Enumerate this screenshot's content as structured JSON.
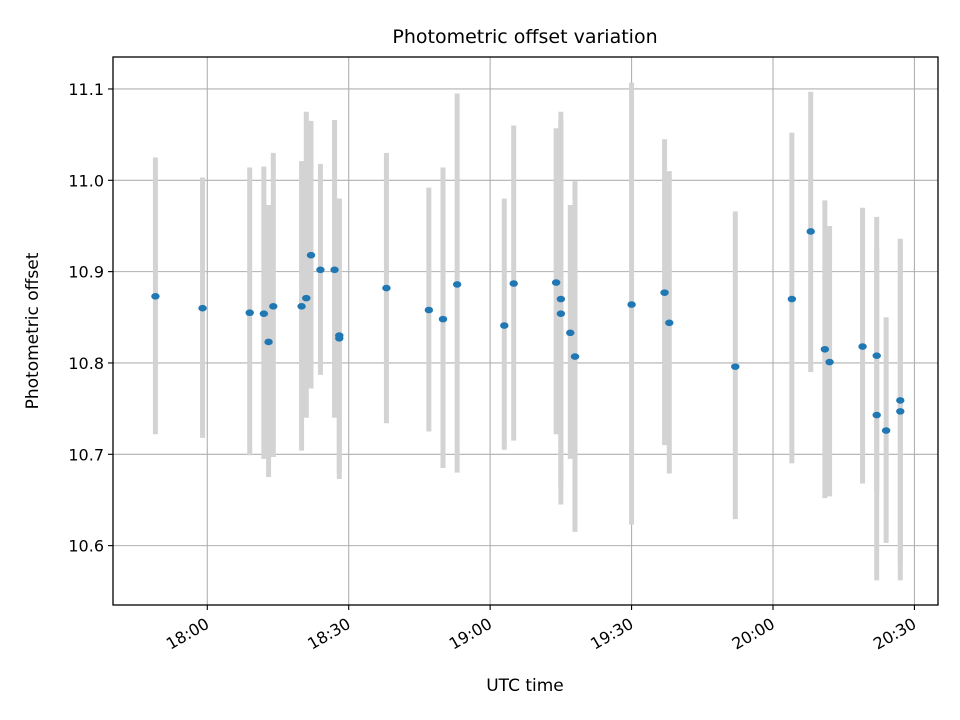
{
  "chart_data": {
    "type": "scatter",
    "title": "Photometric offset variation",
    "xlabel": "UTC time",
    "ylabel": "Photometric offset",
    "x_axis_kind": "time",
    "xlim": [
      "17:40",
      "20:35"
    ],
    "ylim": [
      10.535,
      11.135
    ],
    "xticks": [
      {
        "value": "18:00",
        "label": "18:00"
      },
      {
        "value": "18:30",
        "label": "18:30"
      },
      {
        "value": "19:00",
        "label": "19:00"
      },
      {
        "value": "19:30",
        "label": "19:30"
      },
      {
        "value": "20:00",
        "label": "20:00"
      },
      {
        "value": "20:30",
        "label": "20:30"
      }
    ],
    "yticks": [
      10.6,
      10.7,
      10.8,
      10.9,
      11.0,
      11.1
    ],
    "grid": true,
    "point_color": "#1f77b4",
    "errorbar_color": "#d3d3d3",
    "points": [
      {
        "x": "17:49",
        "y": 10.873,
        "ylow": 10.722,
        "yhigh": 11.025
      },
      {
        "x": "17:59",
        "y": 10.86,
        "ylow": 10.718,
        "yhigh": 11.003
      },
      {
        "x": "18:09",
        "y": 10.855,
        "ylow": 10.699,
        "yhigh": 11.014
      },
      {
        "x": "18:12",
        "y": 10.854,
        "ylow": 10.695,
        "yhigh": 11.015
      },
      {
        "x": "18:13",
        "y": 10.823,
        "ylow": 10.675,
        "yhigh": 10.973
      },
      {
        "x": "18:14",
        "y": 10.862,
        "ylow": 10.697,
        "yhigh": 11.03
      },
      {
        "x": "18:20",
        "y": 10.862,
        "ylow": 10.704,
        "yhigh": 11.021
      },
      {
        "x": "18:21",
        "y": 10.871,
        "ylow": 10.74,
        "yhigh": 11.075
      },
      {
        "x": "18:22",
        "y": 10.918,
        "ylow": 10.772,
        "yhigh": 11.065
      },
      {
        "x": "18:24",
        "y": 10.902,
        "ylow": 10.787,
        "yhigh": 11.018
      },
      {
        "x": "18:27",
        "y": 10.902,
        "ylow": 10.74,
        "yhigh": 11.066
      },
      {
        "x": "18:28",
        "y": 10.827,
        "ylow": 10.673,
        "yhigh": 10.98
      },
      {
        "x": "18:28",
        "y": 10.83,
        "ylow": 10.68,
        "yhigh": 10.98
      },
      {
        "x": "18:38",
        "y": 10.882,
        "ylow": 10.734,
        "yhigh": 11.03
      },
      {
        "x": "18:47",
        "y": 10.858,
        "ylow": 10.725,
        "yhigh": 10.992
      },
      {
        "x": "18:50",
        "y": 10.848,
        "ylow": 10.685,
        "yhigh": 11.014
      },
      {
        "x": "18:53",
        "y": 10.886,
        "ylow": 10.68,
        "yhigh": 11.095
      },
      {
        "x": "19:03",
        "y": 10.841,
        "ylow": 10.705,
        "yhigh": 10.98
      },
      {
        "x": "19:05",
        "y": 10.887,
        "ylow": 10.715,
        "yhigh": 11.06
      },
      {
        "x": "19:14",
        "y": 10.888,
        "ylow": 10.722,
        "yhigh": 11.057
      },
      {
        "x": "19:15",
        "y": 10.87,
        "ylow": 10.665,
        "yhigh": 11.075
      },
      {
        "x": "19:15",
        "y": 10.854,
        "ylow": 10.645,
        "yhigh": 11.065
      },
      {
        "x": "19:17",
        "y": 10.833,
        "ylow": 10.695,
        "yhigh": 10.973
      },
      {
        "x": "19:18",
        "y": 10.807,
        "ylow": 10.615,
        "yhigh": 10.999
      },
      {
        "x": "19:30",
        "y": 10.864,
        "ylow": 10.623,
        "yhigh": 11.107
      },
      {
        "x": "19:37",
        "y": 10.877,
        "ylow": 10.71,
        "yhigh": 11.045
      },
      {
        "x": "19:38",
        "y": 10.844,
        "ylow": 10.679,
        "yhigh": 11.01
      },
      {
        "x": "19:52",
        "y": 10.796,
        "ylow": 10.629,
        "yhigh": 10.966
      },
      {
        "x": "20:04",
        "y": 10.87,
        "ylow": 10.69,
        "yhigh": 11.052
      },
      {
        "x": "20:08",
        "y": 10.944,
        "ylow": 10.79,
        "yhigh": 11.097
      },
      {
        "x": "20:11",
        "y": 10.815,
        "ylow": 10.652,
        "yhigh": 10.978
      },
      {
        "x": "20:12",
        "y": 10.801,
        "ylow": 10.654,
        "yhigh": 10.95
      },
      {
        "x": "20:19",
        "y": 10.818,
        "ylow": 10.668,
        "yhigh": 10.97
      },
      {
        "x": "20:22",
        "y": 10.808,
        "ylow": 10.658,
        "yhigh": 10.96
      },
      {
        "x": "20:22",
        "y": 10.743,
        "ylow": 10.562,
        "yhigh": 10.925
      },
      {
        "x": "20:24",
        "y": 10.726,
        "ylow": 10.603,
        "yhigh": 10.85
      },
      {
        "x": "20:27",
        "y": 10.759,
        "ylow": 10.58,
        "yhigh": 10.936
      },
      {
        "x": "20:27",
        "y": 10.747,
        "ylow": 10.562,
        "yhigh": 10.934
      }
    ]
  }
}
